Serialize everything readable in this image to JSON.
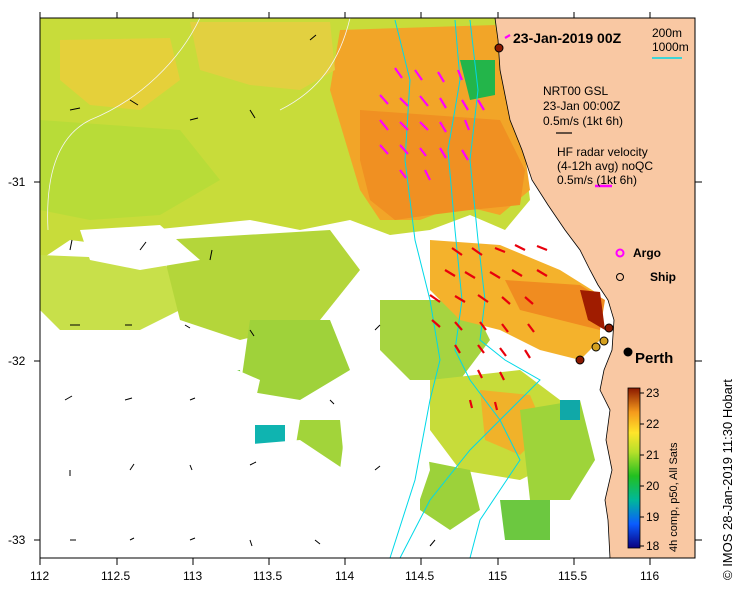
{
  "title": "23-Jan-2019 00Z",
  "depth_legend": {
    "line1": "200m",
    "line2": "1000m"
  },
  "model_legend": {
    "line1": "NRT00 GSL",
    "line2": "23-Jan 00:00Z",
    "line3": "0.5m/s (1kt 6h)"
  },
  "radar_legend": {
    "line1": "HF radar velocity",
    "line2": "(4-12h avg) noQC",
    "line3": "0.5m/s (1kt 6h)"
  },
  "argo_label": "Argo",
  "ship_label": "Ship",
  "city_label": "Perth",
  "credit": "© IMOS 28-Jan-2019 11:30 Hobart",
  "colorbar": {
    "label": "4h comp, p50, All Sats",
    "ticks": [
      "23",
      "22",
      "21",
      "20",
      "19",
      "18"
    ],
    "range": [
      18,
      23
    ]
  },
  "x_ticks": [
    "112",
    "112.5",
    "113",
    "113.5",
    "114",
    "114.5",
    "115",
    "115.5",
    "116"
  ],
  "y_ticks": [
    "-31",
    "-32",
    "-33"
  ],
  "colors": {
    "land": "#f9c8a3",
    "ocean": "#ffffff",
    "radar_vector_north": "#ff00ff",
    "radar_vector_south": "#e8000c",
    "isobath": "#00d8e8"
  }
}
